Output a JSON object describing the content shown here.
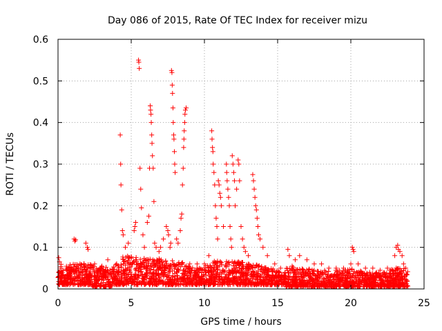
{
  "chart_data": {
    "type": "scatter",
    "title": "Day 086 of 2015, Rate Of TEC Index for receiver mizu",
    "xlabel": "GPS time / hours",
    "ylabel": "ROTI / TECUs",
    "xlim": [
      0,
      25
    ],
    "ylim": [
      0,
      0.6
    ],
    "xticks": [
      0,
      5,
      10,
      15,
      20,
      25
    ],
    "yticks": [
      0,
      0.1,
      0.2,
      0.3,
      0.4,
      0.5,
      0.6
    ],
    "xtick_labels": [
      "0",
      "5",
      "10",
      "15",
      "20",
      "25"
    ],
    "ytick_labels": [
      "0",
      "0.1",
      "0.2",
      "0.3",
      "0.4",
      "0.5",
      "0.6"
    ],
    "grid": true,
    "marker": "+",
    "color": "#ff0000",
    "series": [
      {
        "name": "ROTI",
        "points": [
          [
            0.05,
            0.075
          ],
          [
            0.1,
            0.065
          ],
          [
            0.2,
            0.05
          ],
          [
            0.3,
            0.04
          ],
          [
            0.5,
            0.03
          ],
          [
            0.8,
            0.035
          ],
          [
            1.1,
            0.12
          ],
          [
            1.15,
            0.115
          ],
          [
            1.2,
            0.118
          ],
          [
            1.5,
            0.06
          ],
          [
            1.9,
            0.11
          ],
          [
            2.0,
            0.1
          ],
          [
            2.05,
            0.095
          ],
          [
            2.5,
            0.06
          ],
          [
            3.0,
            0.055
          ],
          [
            3.4,
            0.07
          ],
          [
            4.0,
            0.06
          ],
          [
            4.25,
            0.37
          ],
          [
            4.28,
            0.3
          ],
          [
            4.3,
            0.25
          ],
          [
            4.35,
            0.19
          ],
          [
            4.4,
            0.14
          ],
          [
            4.45,
            0.13
          ],
          [
            4.6,
            0.1
          ],
          [
            4.8,
            0.11
          ],
          [
            5.2,
            0.14
          ],
          [
            5.25,
            0.15
          ],
          [
            5.3,
            0.16
          ],
          [
            5.5,
            0.55
          ],
          [
            5.52,
            0.545
          ],
          [
            5.55,
            0.53
          ],
          [
            5.6,
            0.29
          ],
          [
            5.65,
            0.24
          ],
          [
            5.7,
            0.195
          ],
          [
            5.8,
            0.13
          ],
          [
            5.9,
            0.1
          ],
          [
            6.1,
            0.16
          ],
          [
            6.2,
            0.175
          ],
          [
            6.25,
            0.29
          ],
          [
            6.3,
            0.44
          ],
          [
            6.32,
            0.43
          ],
          [
            6.35,
            0.42
          ],
          [
            6.37,
            0.4
          ],
          [
            6.4,
            0.37
          ],
          [
            6.42,
            0.35
          ],
          [
            6.45,
            0.32
          ],
          [
            6.5,
            0.29
          ],
          [
            6.55,
            0.21
          ],
          [
            6.6,
            0.11
          ],
          [
            6.7,
            0.1
          ],
          [
            6.9,
            0.09
          ],
          [
            7.0,
            0.1
          ],
          [
            7.2,
            0.12
          ],
          [
            7.4,
            0.15
          ],
          [
            7.5,
            0.14
          ],
          [
            7.55,
            0.13
          ],
          [
            7.65,
            0.1
          ],
          [
            7.7,
            0.11
          ],
          [
            7.75,
            0.525
          ],
          [
            7.78,
            0.52
          ],
          [
            7.8,
            0.49
          ],
          [
            7.82,
            0.47
          ],
          [
            7.85,
            0.435
          ],
          [
            7.87,
            0.4
          ],
          [
            7.9,
            0.37
          ],
          [
            7.92,
            0.36
          ],
          [
            7.95,
            0.33
          ],
          [
            7.97,
            0.3
          ],
          [
            8.0,
            0.28
          ],
          [
            8.1,
            0.12
          ],
          [
            8.2,
            0.11
          ],
          [
            8.35,
            0.14
          ],
          [
            8.4,
            0.17
          ],
          [
            8.45,
            0.18
          ],
          [
            8.5,
            0.25
          ],
          [
            8.55,
            0.29
          ],
          [
            8.58,
            0.34
          ],
          [
            8.6,
            0.36
          ],
          [
            8.62,
            0.38
          ],
          [
            8.65,
            0.4
          ],
          [
            8.67,
            0.42
          ],
          [
            8.7,
            0.43
          ],
          [
            8.75,
            0.435
          ],
          [
            9.0,
            0.06
          ],
          [
            9.5,
            0.06
          ],
          [
            10.0,
            0.06
          ],
          [
            10.3,
            0.08
          ],
          [
            10.5,
            0.38
          ],
          [
            10.52,
            0.36
          ],
          [
            10.55,
            0.34
          ],
          [
            10.58,
            0.33
          ],
          [
            10.6,
            0.3
          ],
          [
            10.65,
            0.28
          ],
          [
            10.7,
            0.25
          ],
          [
            10.75,
            0.2
          ],
          [
            10.8,
            0.17
          ],
          [
            10.85,
            0.15
          ],
          [
            10.9,
            0.12
          ],
          [
            10.95,
            0.26
          ],
          [
            11.0,
            0.25
          ],
          [
            11.05,
            0.23
          ],
          [
            11.1,
            0.22
          ],
          [
            11.15,
            0.2
          ],
          [
            11.3,
            0.15
          ],
          [
            11.5,
            0.3
          ],
          [
            11.52,
            0.28
          ],
          [
            11.55,
            0.26
          ],
          [
            11.6,
            0.24
          ],
          [
            11.65,
            0.22
          ],
          [
            11.7,
            0.2
          ],
          [
            11.75,
            0.15
          ],
          [
            11.8,
            0.12
          ],
          [
            11.85,
            0.1
          ],
          [
            11.9,
            0.32
          ],
          [
            11.95,
            0.3
          ],
          [
            12.0,
            0.28
          ],
          [
            12.05,
            0.26
          ],
          [
            12.1,
            0.2
          ],
          [
            12.2,
            0.24
          ],
          [
            12.3,
            0.31
          ],
          [
            12.35,
            0.3
          ],
          [
            12.4,
            0.26
          ],
          [
            12.5,
            0.15
          ],
          [
            12.6,
            0.12
          ],
          [
            12.7,
            0.1
          ],
          [
            12.8,
            0.09
          ],
          [
            13.0,
            0.08
          ],
          [
            13.3,
            0.275
          ],
          [
            13.35,
            0.26
          ],
          [
            13.4,
            0.24
          ],
          [
            13.45,
            0.22
          ],
          [
            13.5,
            0.2
          ],
          [
            13.55,
            0.19
          ],
          [
            13.6,
            0.17
          ],
          [
            13.65,
            0.15
          ],
          [
            13.7,
            0.13
          ],
          [
            13.8,
            0.12
          ],
          [
            14.0,
            0.1
          ],
          [
            14.3,
            0.08
          ],
          [
            14.8,
            0.06
          ],
          [
            15.2,
            0.05
          ],
          [
            15.5,
            0.04
          ],
          [
            15.7,
            0.095
          ],
          [
            15.8,
            0.08
          ],
          [
            16.2,
            0.07
          ],
          [
            16.5,
            0.08
          ],
          [
            17.0,
            0.07
          ],
          [
            17.5,
            0.06
          ],
          [
            18.0,
            0.06
          ],
          [
            18.5,
            0.05
          ],
          [
            19.0,
            0.05
          ],
          [
            19.5,
            0.05
          ],
          [
            20.0,
            0.06
          ],
          [
            20.1,
            0.1
          ],
          [
            20.15,
            0.095
          ],
          [
            20.2,
            0.09
          ],
          [
            20.5,
            0.06
          ],
          [
            21.0,
            0.05
          ],
          [
            21.5,
            0.05
          ],
          [
            22.0,
            0.045
          ],
          [
            22.5,
            0.05
          ],
          [
            23.0,
            0.08
          ],
          [
            23.1,
            0.1
          ],
          [
            23.2,
            0.105
          ],
          [
            23.25,
            0.095
          ],
          [
            23.35,
            0.09
          ],
          [
            23.5,
            0.08
          ],
          [
            23.6,
            0.06
          ],
          [
            23.75,
            0.05
          ]
        ],
        "baseline_band": [
          [
            0.0,
            0.01,
            0.07
          ],
          [
            0.5,
            0.01,
            0.055
          ],
          [
            1.0,
            0.01,
            0.06
          ],
          [
            1.5,
            0.01,
            0.06
          ],
          [
            2.0,
            0.01,
            0.065
          ],
          [
            2.5,
            0.005,
            0.055
          ],
          [
            3.0,
            0.005,
            0.055
          ],
          [
            3.5,
            0.005,
            0.05
          ],
          [
            4.0,
            0.01,
            0.06
          ],
          [
            4.5,
            0.01,
            0.08
          ],
          [
            5.0,
            0.01,
            0.08
          ],
          [
            5.5,
            0.01,
            0.075
          ],
          [
            6.0,
            0.01,
            0.075
          ],
          [
            6.5,
            0.01,
            0.07
          ],
          [
            7.0,
            0.01,
            0.075
          ],
          [
            7.5,
            0.01,
            0.07
          ],
          [
            8.0,
            0.01,
            0.07
          ],
          [
            8.5,
            0.01,
            0.065
          ],
          [
            9.0,
            0.01,
            0.055
          ],
          [
            9.5,
            0.01,
            0.05
          ],
          [
            10.0,
            0.01,
            0.055
          ],
          [
            10.5,
            0.01,
            0.065
          ],
          [
            11.0,
            0.01,
            0.07
          ],
          [
            11.5,
            0.01,
            0.07
          ],
          [
            12.0,
            0.01,
            0.065
          ],
          [
            12.5,
            0.01,
            0.065
          ],
          [
            13.0,
            0.01,
            0.06
          ],
          [
            13.5,
            0.01,
            0.06
          ],
          [
            14.0,
            0.01,
            0.055
          ],
          [
            14.5,
            0.01,
            0.05
          ],
          [
            15.0,
            0.01,
            0.045
          ],
          [
            15.4,
            0.01,
            0.03
          ],
          [
            15.6,
            0.005,
            0.055
          ],
          [
            16.0,
            0.005,
            0.055
          ],
          [
            16.5,
            0.005,
            0.05
          ],
          [
            17.0,
            0.005,
            0.05
          ],
          [
            17.5,
            0.005,
            0.045
          ],
          [
            18.0,
            0.005,
            0.045
          ],
          [
            18.5,
            0.005,
            0.045
          ],
          [
            19.0,
            0.005,
            0.045
          ],
          [
            19.5,
            0.005,
            0.045
          ],
          [
            20.0,
            0.005,
            0.05
          ],
          [
            20.5,
            0.005,
            0.045
          ],
          [
            21.0,
            0.005,
            0.04
          ],
          [
            21.5,
            0.005,
            0.04
          ],
          [
            22.0,
            0.005,
            0.04
          ],
          [
            22.5,
            0.005,
            0.045
          ],
          [
            23.0,
            0.005,
            0.05
          ],
          [
            23.5,
            0.005,
            0.055
          ],
          [
            23.9,
            0.005,
            0.045
          ]
        ]
      }
    ]
  }
}
